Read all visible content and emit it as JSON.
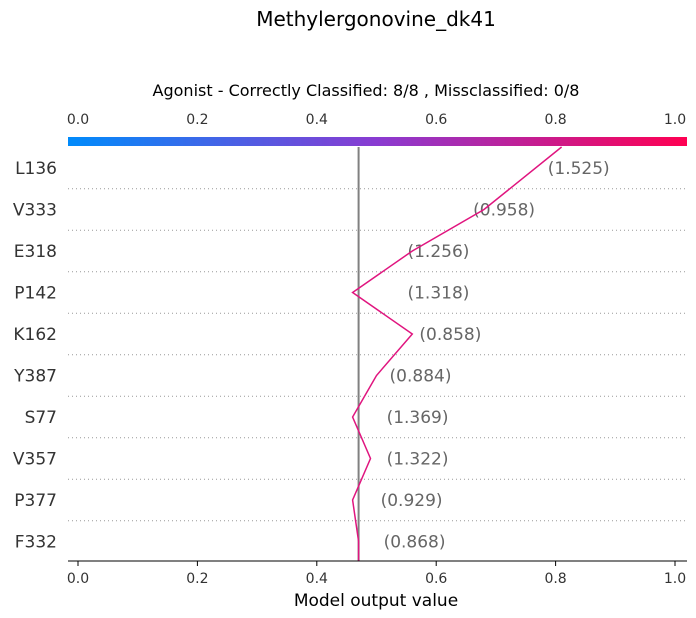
{
  "chart_data": {
    "type": "line",
    "title": "Methylergonovine_dk41",
    "subtitle": "Agonist - Correctly Classified: 8/8 , Missclassified: 0/8",
    "xlabel": "Model output value",
    "xlim": [
      0.0,
      1.0
    ],
    "xticks": [
      "0.0",
      "0.2",
      "0.4",
      "0.6",
      "0.8",
      "1.0"
    ],
    "base_value": 0.47,
    "colorbar": {
      "from": "#008bfb",
      "to": "#ff0052"
    },
    "line_color": "#e0157f",
    "features": [
      "L136",
      "V333",
      "E318",
      "P142",
      "K162",
      "Y387",
      "S77",
      "V357",
      "P377",
      "F332"
    ],
    "feature_values": [
      "(1.525)",
      "(0.958)",
      "(1.256)",
      "(1.318)",
      "(0.858)",
      "(0.884)",
      "(1.369)",
      "(1.322)",
      "(0.929)",
      "(0.868)"
    ],
    "path_x": [
      0.81,
      0.68,
      0.56,
      0.46,
      0.56,
      0.5,
      0.46,
      0.49,
      0.46,
      0.47,
      0.47
    ],
    "grid": "dotted horizontal"
  }
}
